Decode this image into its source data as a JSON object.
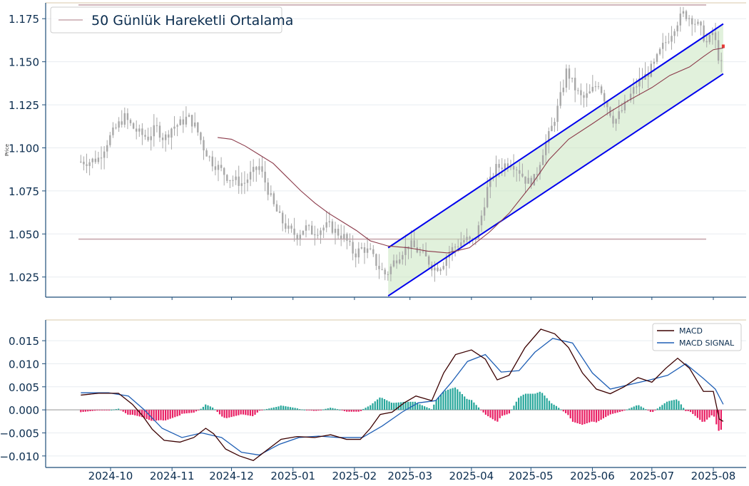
{
  "colors": {
    "axis": "#1f4e79",
    "tick_text": "#0b2d4f",
    "grid": "#e8ecf0",
    "top_border": "#d9c9a8",
    "candle": "#a8a8a8",
    "ma": "#8b3a4a",
    "hline": "#c7a7ae",
    "channel": "#0000ee",
    "channel_fill": "#c8e6c0",
    "macd": "#3b0000",
    "signal": "#1f5fb5",
    "hist_pos": "#26a69a",
    "hist_neg": "#e91e63",
    "zero": "#aaaaaa"
  },
  "chart_data": [
    {
      "type": "candlestick",
      "ylabel": "Price",
      "ylim": [
        1.0133,
        1.1842
      ],
      "yticks": [
        "1.025",
        "1.050",
        "1.075",
        "1.100",
        "1.125",
        "1.150",
        "1.175"
      ],
      "legend": {
        "label": "50 Günlük Hareketli Ortalama",
        "placement": "top-left"
      },
      "grid": true,
      "horizontal_lines": [
        1.183,
        1.047
      ],
      "channel": {
        "upper": {
          "start": [
            "2025-02-18",
            1.042
          ],
          "end": [
            "2025-08-06",
            1.172
          ]
        },
        "lower": {
          "start": [
            "2025-02-18",
            1.014
          ],
          "end": [
            "2025-08-06",
            1.143
          ]
        }
      },
      "ma_points": [
        [
          "2024-11-24",
          1.106
        ],
        [
          "2024-12-01",
          1.105
        ],
        [
          "2024-12-08",
          1.101
        ],
        [
          "2024-12-15",
          1.096
        ],
        [
          "2024-12-22",
          1.091
        ],
        [
          "2024-12-29",
          1.083
        ],
        [
          "2025-01-05",
          1.075
        ],
        [
          "2025-01-12",
          1.068
        ],
        [
          "2025-01-19",
          1.062
        ],
        [
          "2025-01-26",
          1.057
        ],
        [
          "2025-02-02",
          1.052
        ],
        [
          "2025-02-09",
          1.046
        ],
        [
          "2025-02-18",
          1.043
        ],
        [
          "2025-02-28",
          1.042
        ],
        [
          "2025-03-10",
          1.04
        ],
        [
          "2025-03-20",
          1.039
        ],
        [
          "2025-03-31",
          1.042
        ],
        [
          "2025-04-10",
          1.051
        ],
        [
          "2025-04-20",
          1.062
        ],
        [
          "2025-05-01",
          1.078
        ],
        [
          "2025-05-10",
          1.093
        ],
        [
          "2025-05-20",
          1.105
        ],
        [
          "2025-06-01",
          1.114
        ],
        [
          "2025-06-10",
          1.121
        ],
        [
          "2025-06-20",
          1.128
        ],
        [
          "2025-07-01",
          1.135
        ],
        [
          "2025-07-10",
          1.142
        ],
        [
          "2025-07-20",
          1.147
        ],
        [
          "2025-07-27",
          1.153
        ],
        [
          "2025-08-01",
          1.157
        ],
        [
          "2025-08-06",
          1.158
        ]
      ],
      "close_points": [
        [
          "2024-09-16",
          1.092
        ],
        [
          "2024-09-20",
          1.092
        ],
        [
          "2024-09-25",
          1.094
        ],
        [
          "2024-09-30",
          1.105
        ],
        [
          "2024-10-04",
          1.112
        ],
        [
          "2024-10-08",
          1.118
        ],
        [
          "2024-10-12",
          1.112
        ],
        [
          "2024-10-16",
          1.108
        ],
        [
          "2024-10-20",
          1.106
        ],
        [
          "2024-10-24",
          1.112
        ],
        [
          "2024-10-28",
          1.105
        ],
        [
          "2024-11-01",
          1.112
        ],
        [
          "2024-11-05",
          1.114
        ],
        [
          "2024-11-09",
          1.118
        ],
        [
          "2024-11-13",
          1.112
        ],
        [
          "2024-11-17",
          1.1
        ],
        [
          "2024-11-21",
          1.092
        ],
        [
          "2024-11-25",
          1.088
        ],
        [
          "2024-11-29",
          1.083
        ],
        [
          "2024-12-03",
          1.081
        ],
        [
          "2024-12-07",
          1.079
        ],
        [
          "2024-12-11",
          1.085
        ],
        [
          "2024-12-15",
          1.089
        ],
        [
          "2024-12-18",
          1.08
        ],
        [
          "2024-12-22",
          1.067
        ],
        [
          "2024-12-26",
          1.058
        ],
        [
          "2024-12-30",
          1.052
        ],
        [
          "2025-01-03",
          1.049
        ],
        [
          "2025-01-07",
          1.054
        ],
        [
          "2025-01-11",
          1.051
        ],
        [
          "2025-01-15",
          1.053
        ],
        [
          "2025-01-19",
          1.055
        ],
        [
          "2025-01-23",
          1.051
        ],
        [
          "2025-01-27",
          1.048
        ],
        [
          "2025-02-01",
          1.038
        ],
        [
          "2025-02-05",
          1.042
        ],
        [
          "2025-02-09",
          1.039
        ],
        [
          "2025-02-13",
          1.031
        ],
        [
          "2025-02-17",
          1.026
        ],
        [
          "2025-02-21",
          1.034
        ],
        [
          "2025-02-25",
          1.04
        ],
        [
          "2025-03-01",
          1.044
        ],
        [
          "2025-03-05",
          1.04
        ],
        [
          "2025-03-09",
          1.036
        ],
        [
          "2025-03-13",
          1.03
        ],
        [
          "2025-03-17",
          1.032
        ],
        [
          "2025-03-21",
          1.04
        ],
        [
          "2025-03-25",
          1.044
        ],
        [
          "2025-03-29",
          1.047
        ],
        [
          "2025-04-02",
          1.045
        ],
        [
          "2025-04-05",
          1.055
        ],
        [
          "2025-04-09",
          1.076
        ],
        [
          "2025-04-13",
          1.088
        ],
        [
          "2025-04-17",
          1.09
        ],
        [
          "2025-04-21",
          1.092
        ],
        [
          "2025-04-25",
          1.087
        ],
        [
          "2025-04-29",
          1.08
        ],
        [
          "2025-05-03",
          1.082
        ],
        [
          "2025-05-07",
          1.098
        ],
        [
          "2025-05-11",
          1.11
        ],
        [
          "2025-05-15",
          1.125
        ],
        [
          "2025-05-19",
          1.145
        ],
        [
          "2025-05-23",
          1.135
        ],
        [
          "2025-05-27",
          1.128
        ],
        [
          "2025-05-31",
          1.132
        ],
        [
          "2025-06-04",
          1.138
        ],
        [
          "2025-06-08",
          1.126
        ],
        [
          "2025-06-12",
          1.115
        ],
        [
          "2025-06-16",
          1.122
        ],
        [
          "2025-06-20",
          1.13
        ],
        [
          "2025-06-24",
          1.138
        ],
        [
          "2025-06-28",
          1.142
        ],
        [
          "2025-07-02",
          1.148
        ],
        [
          "2025-07-06",
          1.158
        ],
        [
          "2025-07-10",
          1.165
        ],
        [
          "2025-07-13",
          1.172
        ],
        [
          "2025-07-17",
          1.178
        ],
        [
          "2025-07-21",
          1.175
        ],
        [
          "2025-07-25",
          1.17
        ],
        [
          "2025-07-29",
          1.16
        ],
        [
          "2025-08-01",
          1.168
        ],
        [
          "2025-08-03",
          1.155
        ],
        [
          "2025-08-05",
          1.148
        ],
        [
          "2025-08-06",
          1.157
        ]
      ]
    },
    {
      "type": "line",
      "ylim": [
        -0.0125,
        0.0195
      ],
      "yticks": [
        "−0.010",
        "−0.005",
        "0.000",
        "0.005",
        "0.010",
        "0.015"
      ],
      "xticks": [
        "2024-10",
        "2024-11",
        "2024-12",
        "2025-01",
        "2025-02",
        "2025-03",
        "2025-04",
        "2025-05",
        "2025-06",
        "2025-07",
        "2025-08"
      ],
      "legend": {
        "placement": "top-right"
      },
      "series": [
        {
          "name": "MACD",
          "points": [
            [
              "2024-09-16",
              0.0032
            ],
            [
              "2024-09-25",
              0.0036
            ],
            [
              "2024-10-05",
              0.0036
            ],
            [
              "2024-10-12",
              0.0012
            ],
            [
              "2024-10-17",
              -0.0012
            ],
            [
              "2024-10-22",
              -0.0042
            ],
            [
              "2024-10-28",
              -0.0066
            ],
            [
              "2024-11-05",
              -0.007
            ],
            [
              "2024-11-12",
              -0.006
            ],
            [
              "2024-11-18",
              -0.004
            ],
            [
              "2024-11-22",
              -0.0052
            ],
            [
              "2024-11-28",
              -0.0085
            ],
            [
              "2024-12-05",
              -0.01
            ],
            [
              "2024-12-12",
              -0.011
            ],
            [
              "2024-12-18",
              -0.009
            ],
            [
              "2024-12-26",
              -0.0064
            ],
            [
              "2025-01-03",
              -0.0058
            ],
            [
              "2025-01-12",
              -0.006
            ],
            [
              "2025-01-20",
              -0.0054
            ],
            [
              "2025-01-28",
              -0.0064
            ],
            [
              "2025-02-04",
              -0.0064
            ],
            [
              "2025-02-09",
              -0.004
            ],
            [
              "2025-02-14",
              -0.001
            ],
            [
              "2025-02-20",
              -0.0005
            ],
            [
              "2025-02-26",
              0.0015
            ],
            [
              "2025-03-04",
              0.003
            ],
            [
              "2025-03-12",
              0.002
            ],
            [
              "2025-03-18",
              0.008
            ],
            [
              "2025-03-24",
              0.012
            ],
            [
              "2025-04-01",
              0.013
            ],
            [
              "2025-04-08",
              0.011
            ],
            [
              "2025-04-14",
              0.0065
            ],
            [
              "2025-04-20",
              0.0075
            ],
            [
              "2025-04-28",
              0.0135
            ],
            [
              "2025-05-06",
              0.0175
            ],
            [
              "2025-05-13",
              0.0165
            ],
            [
              "2025-05-20",
              0.0135
            ],
            [
              "2025-05-27",
              0.008
            ],
            [
              "2025-06-03",
              0.0045
            ],
            [
              "2025-06-10",
              0.0035
            ],
            [
              "2025-06-17",
              0.005
            ],
            [
              "2025-06-24",
              0.007
            ],
            [
              "2025-07-01",
              0.006
            ],
            [
              "2025-07-08",
              0.009
            ],
            [
              "2025-07-14",
              0.0112
            ],
            [
              "2025-07-20",
              0.009
            ],
            [
              "2025-07-27",
              0.004
            ],
            [
              "2025-08-01",
              0.004
            ],
            [
              "2025-08-04",
              -0.002
            ],
            [
              "2025-08-06",
              -0.0025
            ]
          ]
        },
        {
          "name": "MACD SIGNAL",
          "points": [
            [
              "2024-09-16",
              0.0037
            ],
            [
              "2024-09-30",
              0.0037
            ],
            [
              "2024-10-10",
              0.003
            ],
            [
              "2024-10-18",
              0.0
            ],
            [
              "2024-10-27",
              -0.004
            ],
            [
              "2024-11-06",
              -0.006
            ],
            [
              "2024-11-16",
              -0.005
            ],
            [
              "2024-11-26",
              -0.006
            ],
            [
              "2024-12-06",
              -0.0092
            ],
            [
              "2024-12-15",
              -0.0098
            ],
            [
              "2024-12-25",
              -0.0075
            ],
            [
              "2025-01-04",
              -0.006
            ],
            [
              "2025-01-14",
              -0.0057
            ],
            [
              "2025-01-24",
              -0.006
            ],
            [
              "2025-02-05",
              -0.006
            ],
            [
              "2025-02-15",
              -0.0035
            ],
            [
              "2025-02-25",
              -0.0005
            ],
            [
              "2025-03-05",
              0.0015
            ],
            [
              "2025-03-14",
              0.002
            ],
            [
              "2025-03-22",
              0.006
            ],
            [
              "2025-03-30",
              0.0105
            ],
            [
              "2025-04-08",
              0.012
            ],
            [
              "2025-04-16",
              0.0082
            ],
            [
              "2025-04-25",
              0.0085
            ],
            [
              "2025-05-03",
              0.0125
            ],
            [
              "2025-05-12",
              0.0155
            ],
            [
              "2025-05-22",
              0.0145
            ],
            [
              "2025-06-01",
              0.008
            ],
            [
              "2025-06-10",
              0.0045
            ],
            [
              "2025-06-20",
              0.0055
            ],
            [
              "2025-06-30",
              0.0065
            ],
            [
              "2025-07-09",
              0.0075
            ],
            [
              "2025-07-18",
              0.01
            ],
            [
              "2025-07-27",
              0.0068
            ],
            [
              "2025-08-02",
              0.0045
            ],
            [
              "2025-08-06",
              0.0012
            ]
          ]
        }
      ]
    }
  ]
}
